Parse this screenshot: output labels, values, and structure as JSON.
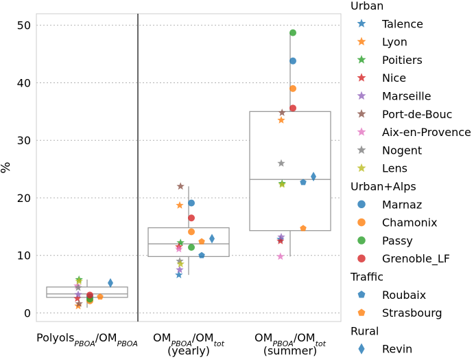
{
  "chart_data": {
    "type": "scatter",
    "subtype": "box-strip",
    "ylabel": "%",
    "ylim": [
      -1.5,
      52
    ],
    "yticks": [
      0,
      10,
      20,
      30,
      40,
      50
    ],
    "grid": "horizontal dotted",
    "categories": [
      {
        "label": "Polyols",
        "sub": "PBOA",
        "label2": "/OM",
        "sub2": "PBOA",
        "line2": ""
      },
      {
        "label": "OM",
        "sub": "PBOA",
        "label2": "/OM",
        "sub2": "tot",
        "line2": "(yearly)"
      },
      {
        "label": "OM",
        "sub": "PBOA",
        "label2": "/OM",
        "sub2": "tot",
        "line2": "(summer)"
      }
    ],
    "boxes": [
      {
        "q1": 2.7,
        "median": 3.3,
        "q3": 4.5,
        "whisker_low": 0.9,
        "whisker_high": 5.8
      },
      {
        "q1": 9.8,
        "median": 12.0,
        "q3": 14.8,
        "whisker_low": 6.6,
        "whisker_high": 22.0
      },
      {
        "q1": 14.3,
        "median": 23.2,
        "q3": 35.0,
        "whisker_low": 9.8,
        "whisker_high": 48.7
      }
    ],
    "groups": [
      {
        "name": "Urban",
        "marker": "star",
        "series": [
          {
            "name": "Talence",
            "color": "#1f77b4",
            "values": [
              null,
              6.6,
              12.8
            ]
          },
          {
            "name": "Lyon",
            "color": "#ff7f0e",
            "values": [
              1.2,
              18.7,
              33.5
            ]
          },
          {
            "name": "Poitiers",
            "color": "#2ca02c",
            "values": [
              5.8,
              12.2,
              22.5
            ]
          },
          {
            "name": "Nice",
            "color": "#d62728",
            "values": [
              2.5,
              11.5,
              12.5
            ]
          },
          {
            "name": "Marseille",
            "color": "#9467bd",
            "values": [
              3.2,
              7.5,
              13.2
            ]
          },
          {
            "name": "Port-de-Bouc",
            "color": "#8c564b",
            "values": [
              1.6,
              22.0,
              34.8
            ]
          },
          {
            "name": "Aix-en-Provence",
            "color": "#e377c2",
            "values": [
              4.7,
              11.1,
              9.8
            ]
          },
          {
            "name": "Nogent",
            "color": "#7f7f7f",
            "values": [
              4.4,
              9.0,
              26.0
            ]
          },
          {
            "name": "Lens",
            "color": "#bcbd22",
            "values": [
              5.5,
              8.5,
              22.3
            ]
          }
        ]
      },
      {
        "name": "Urban+Alps",
        "marker": "circle",
        "series": [
          {
            "name": "Marnaz",
            "color": "#1f77b4",
            "values": [
              2.8,
              19.1,
              43.8
            ]
          },
          {
            "name": "Chamonix",
            "color": "#ff7f0e",
            "values": [
              2.1,
              14.1,
              39.0
            ]
          },
          {
            "name": "Passy",
            "color": "#2ca02c",
            "values": [
              2.4,
              11.4,
              48.7
            ]
          },
          {
            "name": "Grenoble_LF",
            "color": "#d62728",
            "values": [
              3.1,
              16.5,
              35.6
            ]
          }
        ]
      },
      {
        "name": "Traffic",
        "marker": "pentagon",
        "series": [
          {
            "name": "Roubaix",
            "color": "#1f77b4",
            "values": [
              null,
              10.0,
              22.7
            ]
          },
          {
            "name": "Strasbourg",
            "color": "#ff7f0e",
            "values": [
              2.8,
              12.4,
              14.7
            ]
          }
        ]
      },
      {
        "name": "Rural",
        "marker": "diamond",
        "series": [
          {
            "name": "Revin",
            "color": "#1f77b4",
            "values": [
              5.2,
              12.9,
              23.7
            ]
          }
        ]
      }
    ]
  }
}
